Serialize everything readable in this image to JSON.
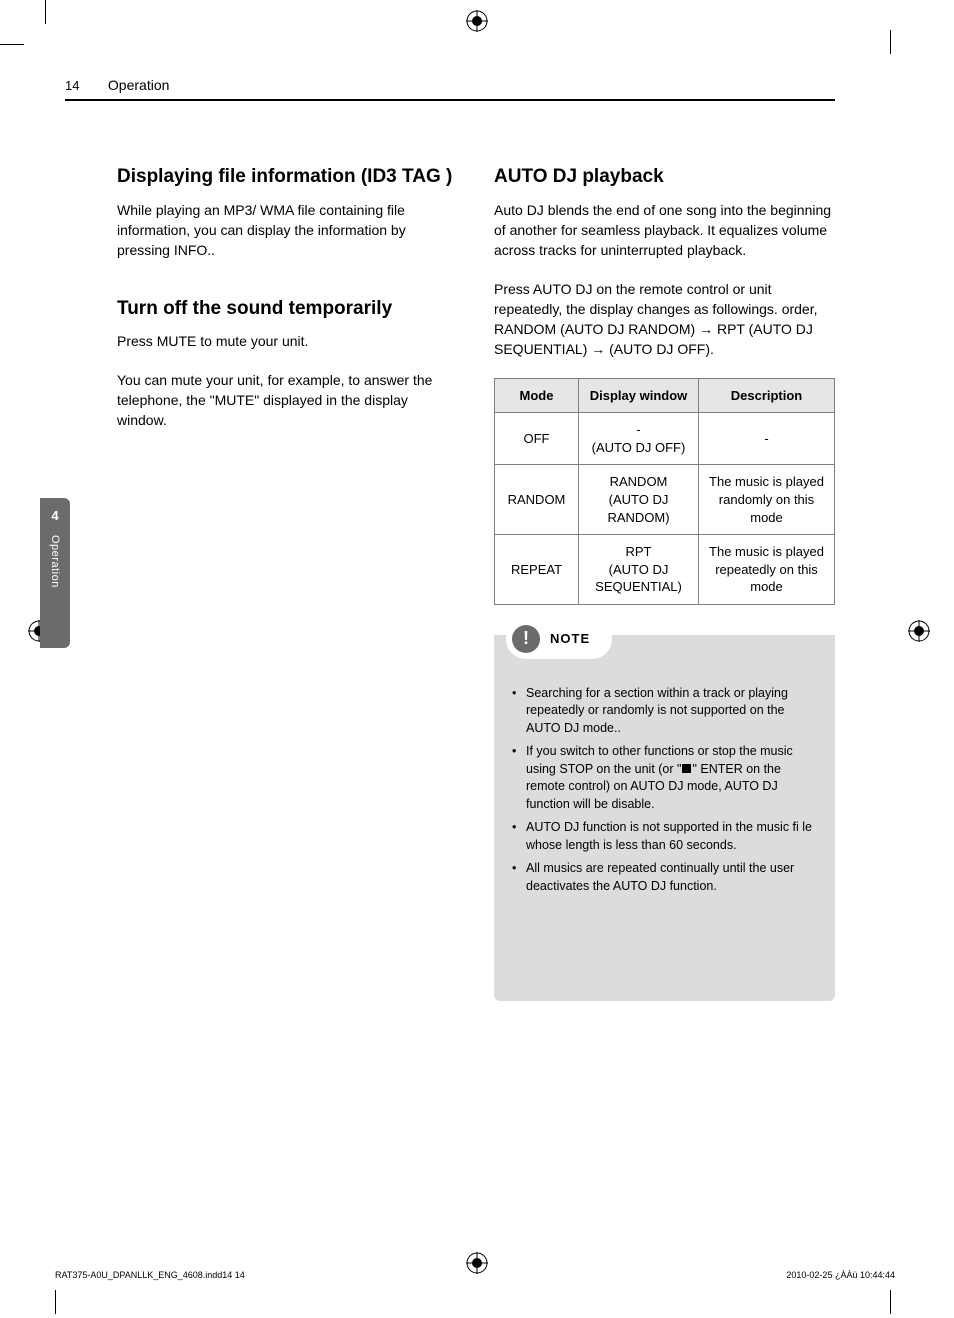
{
  "header": {
    "page_number": "14",
    "section": "Operation"
  },
  "tab": {
    "number": "4",
    "label": "Operation"
  },
  "left": {
    "h1": "Displaying file information (ID3 TAG )",
    "p1_a": "While playing an MP3/ WMA file containing file information, you can display the information by pressing ",
    "p1_bold": "INFO.",
    "p1_b": ".",
    "h2": "Turn off the sound temporarily",
    "p2_a": "Press ",
    "p2_bold": "MUTE",
    "p2_b": " to mute your unit.",
    "p3": "You can mute your unit, for example, to answer the telephone, the \"MUTE\" displayed in the display window."
  },
  "right": {
    "h1": "AUTO DJ playback",
    "p1": "Auto DJ blends the end of one song into the beginning of another for seamless playback. It equalizes volume across tracks for uninterrupted playback.",
    "p2": "Press AUTO DJ on the remote control or unit repeatedly, the display changes as followings. order, RANDOM (AUTO DJ RANDOM) → RPT (AUTO DJ SEQUENTIAL) → (AUTO DJ OFF).",
    "table": {
      "headers": [
        "Mode",
        "Display window",
        "Description"
      ],
      "rows": [
        {
          "mode": "OFF",
          "disp": "-\n(AUTO DJ OFF)",
          "desc": "-"
        },
        {
          "mode": "RANDOM",
          "disp": "RANDOM\n(AUTO DJ RANDOM)",
          "desc": "The music is played randomly on this mode"
        },
        {
          "mode": "REPEAT",
          "disp": "RPT\n(AUTO DJ SEQUENTIAL)",
          "desc": "The music is played repeatedly on this mode"
        }
      ]
    },
    "note_label": "NOTE",
    "notes": [
      "Searching for a section within a track or playing repeatedly or randomly is not supported on the AUTO DJ mode..",
      "If you switch to other functions or stop the music using STOP on the unit (or \"■\" ENTER on the remote control) on AUTO DJ mode, AUTO DJ function will be disable.",
      "AUTO DJ function is not supported in the music fi le whose length is less than 60 seconds.",
      "All musics are repeated continually until the user deactivates the AUTO DJ function."
    ]
  },
  "footer": {
    "left_a": "RAT375-A0U_DPANLLK_ENG_4608.indd14   14",
    "right_a": "2010-02-25   ¿ÀÀü 10:44:44"
  },
  "reg_colors": {
    "stroke": "#000",
    "fill": "#000"
  }
}
